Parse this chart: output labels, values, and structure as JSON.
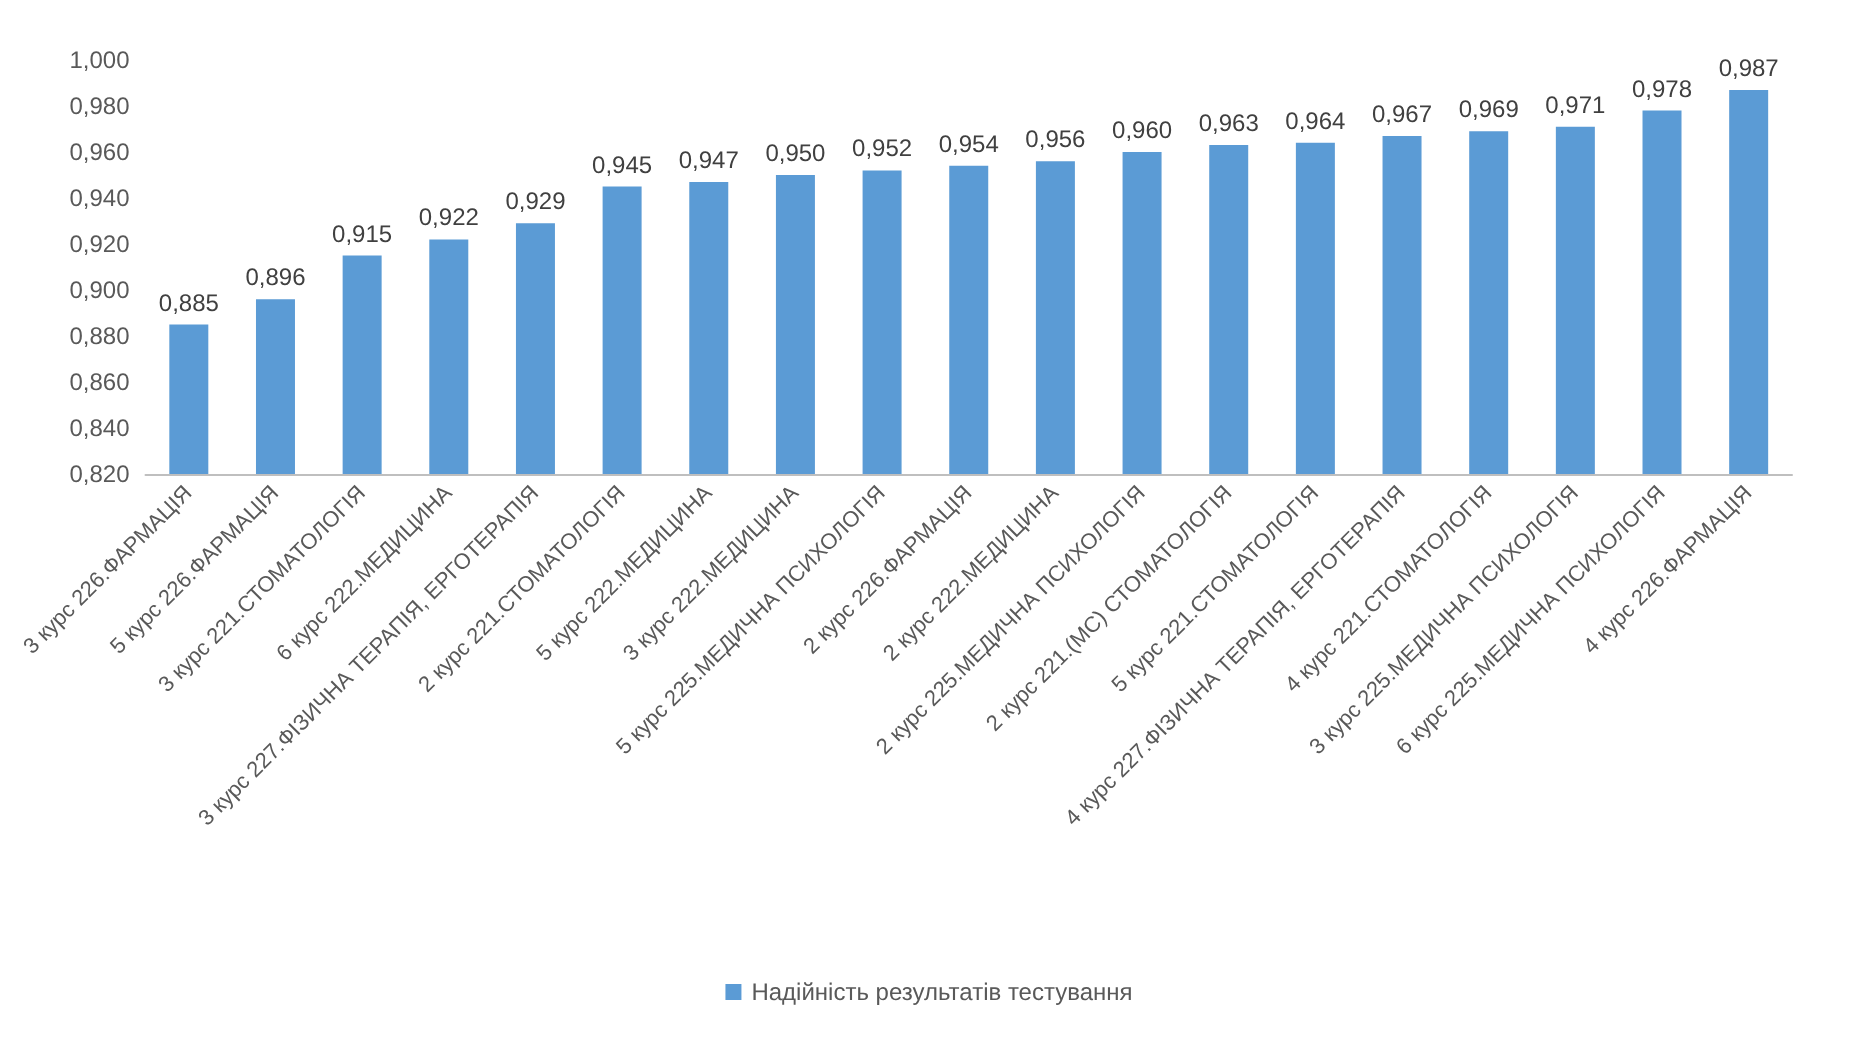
{
  "chart_data": {
    "type": "bar",
    "categories": [
      "3 курс 226.ФАРМАЦІЯ",
      "5 курс 226.ФАРМАЦІЯ",
      "3 курс 221.СТОМАТОЛОГІЯ",
      "6 курс 222.МЕДИЦИНА",
      "3 курс 227.ФІЗИЧНА ТЕРАПІЯ, ЕРГОТЕРАПІЯ",
      "2 курс 221.СТОМАТОЛОГІЯ",
      "5 курс 222.МЕДИЦИНА",
      "3 курс 222.МЕДИЦИНА",
      "5 курс 225.МЕДИЧНА ПСИХОЛОГІЯ",
      "2 курс 226.ФАРМАЦІЯ",
      "2 курс 222.МЕДИЦИНА",
      "2 курс 225.МЕДИЧНА ПСИХОЛОГІЯ",
      "2 курс 221.(МС) СТОМАТОЛОГІЯ",
      "5 курс 221.СТОМАТОЛОГІЯ",
      "4 курс 227.ФІЗИЧНА ТЕРАПІЯ, ЕРГОТЕРАПІЯ",
      "4 курс 221.СТОМАТОЛОГІЯ",
      "3 курс 225.МЕДИЧНА ПСИХОЛОГІЯ",
      "6 курс 225.МЕДИЧНА ПСИХОЛОГІЯ",
      "4 курс 226.ФАРМАЦІЯ"
    ],
    "series": [
      {
        "name": "Надійність результатів тестування",
        "color": "#5b9bd5",
        "values": [
          0.885,
          0.896,
          0.915,
          0.922,
          0.929,
          0.945,
          0.947,
          0.95,
          0.952,
          0.954,
          0.956,
          0.96,
          0.963,
          0.964,
          0.967,
          0.969,
          0.971,
          0.978,
          0.987
        ],
        "value_labels": [
          "0,885",
          "0,896",
          "0,915",
          "0,922",
          "0,929",
          "0,945",
          "0,947",
          "0,950",
          "0,952",
          "0,954",
          "0,956",
          "0,960",
          "0,963",
          "0,964",
          "0,967",
          "0,969",
          "0,971",
          "0,978",
          "0,987"
        ]
      }
    ],
    "ylim": [
      0.82,
      1.0
    ],
    "yticks": [
      {
        "value": 0.82,
        "label": "0,820"
      },
      {
        "value": 0.84,
        "label": "0,840"
      },
      {
        "value": 0.86,
        "label": "0,860"
      },
      {
        "value": 0.88,
        "label": "0,880"
      },
      {
        "value": 0.9,
        "label": "0,900"
      },
      {
        "value": 0.92,
        "label": "0,920"
      },
      {
        "value": 0.94,
        "label": "0,940"
      },
      {
        "value": 0.96,
        "label": "0,960"
      },
      {
        "value": 0.98,
        "label": "0,980"
      },
      {
        "value": 1.0,
        "label": "1,000"
      }
    ],
    "grid": false,
    "legend": "bottom"
  }
}
